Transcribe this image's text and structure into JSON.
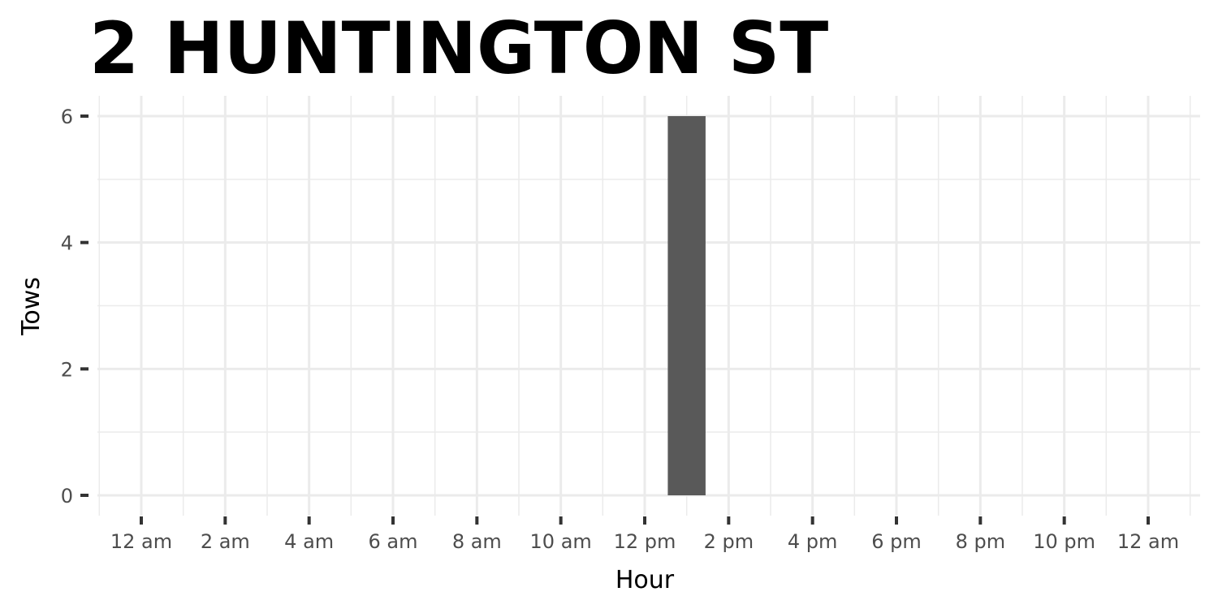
{
  "chart_data": {
    "type": "bar",
    "title": "2 HUNTINGTON ST",
    "xlabel": "Hour",
    "ylabel": "Tows",
    "x_tick_labels": [
      "12 am",
      "2 am",
      "4 am",
      "6 am",
      "8 am",
      "10 am",
      "12 pm",
      "2 pm",
      "4 pm",
      "6 pm",
      "8 pm",
      "10 pm",
      "12 am"
    ],
    "y_tick_labels": [
      "0",
      "2",
      "4",
      "6"
    ],
    "xlim": [
      0,
      24
    ],
    "ylim": [
      0,
      6
    ],
    "grid": true,
    "bars": [
      {
        "hour": 13,
        "value": 6
      }
    ],
    "colors": {
      "bar": "#595959",
      "grid": "#ebebeb",
      "ticks": "#333333"
    }
  }
}
